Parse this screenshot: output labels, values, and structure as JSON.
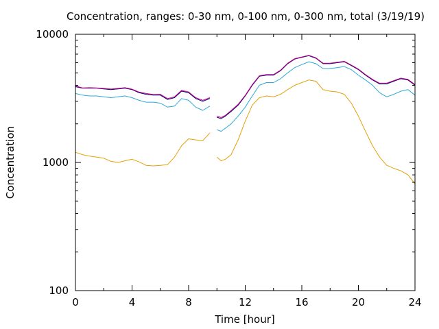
{
  "chart_data": {
    "type": "line",
    "title": "Concentration, ranges: 0-30 nm, 0-100 nm, 0-300 nm, total (3/19/19)",
    "xlabel": "Time [hour]",
    "ylabel": "Concentration",
    "xlim": [
      0,
      24
    ],
    "ylim": [
      100,
      10000
    ],
    "y_scale": "log",
    "x_ticks": [
      0,
      4,
      8,
      12,
      16,
      20,
      24
    ],
    "x_tick_labels": [
      "0",
      "4",
      "8",
      "12",
      "16",
      "20",
      "24"
    ],
    "y_ticks": [
      100,
      1000,
      10000
    ],
    "y_tick_labels": [
      "100",
      "1000",
      "10000"
    ],
    "grid": false,
    "legend": "none",
    "series": [
      {
        "color": "#e3a008",
        "x": [
          0,
          0.5,
          1,
          1.5,
          2,
          2.5,
          3,
          3.5,
          4,
          4.5,
          5,
          5.5,
          6,
          6.5,
          7,
          7.5,
          8,
          8.5,
          9,
          9.5,
          null,
          10,
          10.3,
          10.6,
          11,
          11.5,
          12,
          12.5,
          13,
          13.5,
          14,
          14.5,
          15,
          15.5,
          16,
          16.5,
          17,
          17.5,
          18,
          18.5,
          19,
          19.5,
          20,
          20.5,
          21,
          21.5,
          22,
          22.5,
          23,
          23.5,
          24
        ],
        "y": [
          1200,
          1150,
          1120,
          1100,
          1080,
          1020,
          1000,
          1030,
          1060,
          1010,
          950,
          940,
          950,
          960,
          1100,
          1350,
          1530,
          1500,
          1480,
          1700,
          null,
          1100,
          1030,
          1060,
          1150,
          1500,
          2100,
          2800,
          3200,
          3300,
          3250,
          3400,
          3700,
          4000,
          4200,
          4400,
          4300,
          3700,
          3600,
          3550,
          3400,
          2900,
          2300,
          1750,
          1350,
          1100,
          950,
          900,
          860,
          800,
          680
        ]
      },
      {
        "color": "#2aa7d6",
        "x": [
          0,
          0.5,
          1,
          1.5,
          2,
          2.5,
          3,
          3.5,
          4,
          4.5,
          5,
          5.5,
          6,
          6.5,
          7,
          7.5,
          8,
          8.5,
          9,
          9.5,
          null,
          10,
          10.3,
          10.6,
          11,
          11.5,
          12,
          12.5,
          13,
          13.5,
          14,
          14.5,
          15,
          15.5,
          16,
          16.5,
          17,
          17.5,
          18,
          18.5,
          19,
          19.5,
          20,
          20.5,
          21,
          21.5,
          22,
          22.5,
          23,
          23.5,
          24
        ],
        "y": [
          3450,
          3350,
          3300,
          3300,
          3250,
          3200,
          3250,
          3300,
          3200,
          3050,
          2950,
          2950,
          2900,
          2700,
          2750,
          3150,
          3050,
          2700,
          2550,
          2750,
          null,
          1800,
          1750,
          1850,
          2000,
          2300,
          2700,
          3300,
          4000,
          4200,
          4200,
          4500,
          5000,
          5500,
          5800,
          6100,
          5900,
          5400,
          5400,
          5500,
          5600,
          5300,
          4800,
          4400,
          4000,
          3500,
          3250,
          3400,
          3600,
          3700,
          3350
        ]
      },
      {
        "color": "#000080",
        "x": [
          0,
          0.5,
          1,
          1.5,
          2,
          2.5,
          3,
          3.5,
          4,
          4.5,
          5,
          5.5,
          6,
          6.5,
          7,
          7.5,
          8,
          8.5,
          9,
          9.5,
          null,
          10,
          10.3,
          10.6,
          11,
          11.5,
          12,
          12.5,
          13,
          13.5,
          14,
          14.5,
          15,
          15.5,
          16,
          16.5,
          17,
          17.5,
          18,
          18.5,
          19,
          19.5,
          20,
          20.5,
          21,
          21.5,
          22,
          22.5,
          23,
          23.5,
          24
        ],
        "y": [
          3900,
          3800,
          3800,
          3800,
          3750,
          3700,
          3750,
          3800,
          3700,
          3500,
          3400,
          3350,
          3350,
          3100,
          3200,
          3600,
          3500,
          3150,
          3000,
          3150,
          null,
          2250,
          2200,
          2300,
          2500,
          2800,
          3300,
          4000,
          4700,
          4800,
          4800,
          5200,
          5900,
          6400,
          6600,
          6800,
          6500,
          5900,
          5900,
          6000,
          6100,
          5700,
          5300,
          4800,
          4400,
          4100,
          4100,
          4300,
          4500,
          4400,
          4000
        ]
      },
      {
        "color": "#c8007a",
        "x": [
          0,
          0.5,
          1,
          1.5,
          2,
          2.5,
          3,
          3.5,
          4,
          4.5,
          5,
          5.5,
          6,
          6.5,
          7,
          7.5,
          8,
          8.5,
          9,
          9.5,
          null,
          10,
          10.3,
          10.6,
          11,
          11.5,
          12,
          12.5,
          13,
          13.5,
          14,
          14.5,
          15,
          15.5,
          16,
          16.5,
          17,
          17.5,
          18,
          18.5,
          19,
          19.5,
          20,
          20.5,
          21,
          21.5,
          22,
          22.5,
          23,
          23.5,
          24
        ],
        "y": [
          3950,
          3820,
          3830,
          3820,
          3780,
          3740,
          3780,
          3830,
          3730,
          3540,
          3450,
          3390,
          3400,
          3150,
          3250,
          3650,
          3550,
          3200,
          3050,
          3200,
          null,
          2300,
          2240,
          2330,
          2540,
          2840,
          3340,
          4050,
          4750,
          4850,
          4850,
          5250,
          5950,
          6450,
          6650,
          6850,
          6550,
          5950,
          5950,
          6050,
          6150,
          5750,
          5350,
          4850,
          4450,
          4150,
          4150,
          4350,
          4550,
          4450,
          4050
        ]
      }
    ]
  }
}
